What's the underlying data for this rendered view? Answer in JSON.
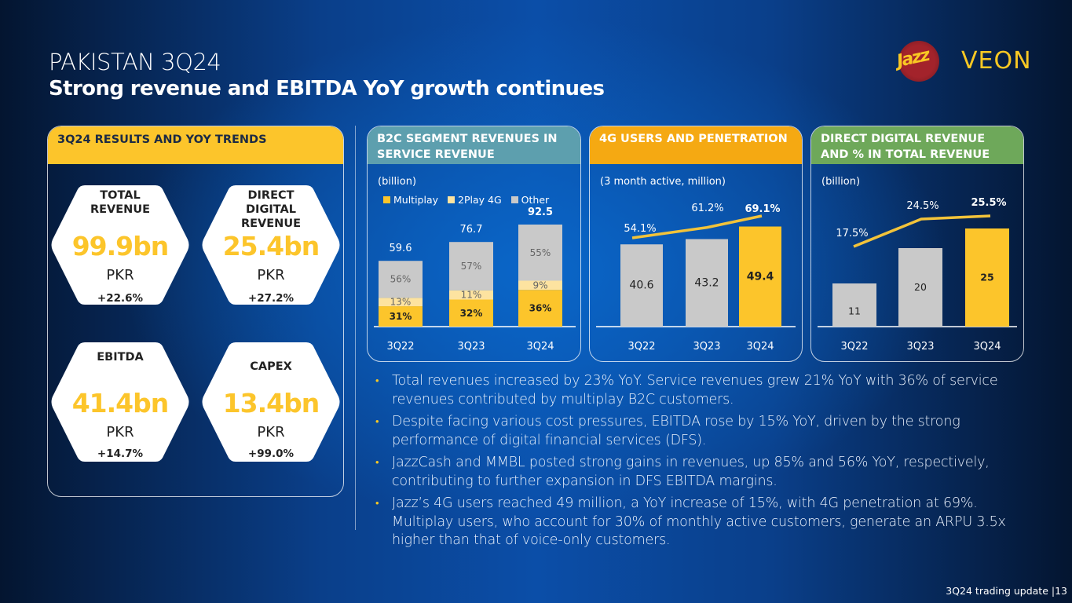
{
  "header": {
    "title": "PAKISTAN 3Q24",
    "subtitle": "Strong revenue and EBITDA YoY growth continues"
  },
  "logo": {
    "jazz": "Jazz",
    "veon": "VEON"
  },
  "results": {
    "heading": "3Q24 RESULTS AND YOY TRENDS",
    "cards": [
      {
        "label": "TOTAL\nREVENUE",
        "value": "99.9bn",
        "unit": "PKR",
        "change": "+22.6%"
      },
      {
        "label": "DIRECT\nDIGITAL\nREVENUE",
        "value": "25.4bn",
        "unit": "PKR",
        "change": "+27.2%"
      },
      {
        "label": "EBITDA",
        "value": "41.4bn",
        "unit": "PKR",
        "change": "+14.7%"
      },
      {
        "label": "CAPEX",
        "value": "13.4bn",
        "unit": "PKR",
        "change": "+99.0%"
      }
    ]
  },
  "colors": {
    "yellow": "#fcc52b",
    "light_yellow": "#fde3a0",
    "grey": "#c9c9c9",
    "line": "#f2c33a"
  },
  "chart_data": [
    {
      "type": "bar",
      "stacked": true,
      "title": "B2C SEGMENT REVENUES IN SERVICE REVENUE",
      "unit_note": "(billion)",
      "categories": [
        "3Q22",
        "3Q23",
        "3Q24"
      ],
      "totals": [
        59.6,
        76.7,
        92.5
      ],
      "total_labels": [
        "59.6",
        "76.7",
        "92.5"
      ],
      "series": [
        {
          "name": "Multiplay",
          "values": [
            31,
            32,
            36
          ],
          "labels": [
            "31%",
            "32%",
            "36%"
          ]
        },
        {
          "name": "2Play 4G",
          "values": [
            13,
            11,
            9
          ],
          "labels": [
            "13%",
            "11%",
            "9%"
          ]
        },
        {
          "name": "Other",
          "values": [
            56,
            57,
            55
          ],
          "labels": [
            "56%",
            "57%",
            "55%"
          ]
        }
      ],
      "legend": "top",
      "ylim": [
        0,
        100
      ]
    },
    {
      "type": "bar",
      "title": "4G USERS AND PENETRATION",
      "unit_note": "(3 month active, million)",
      "categories": [
        "3Q22",
        "3Q23",
        "3Q24"
      ],
      "values": [
        40.6,
        43.2,
        49.4
      ],
      "value_labels": [
        "40.6",
        "43.2",
        "49.4"
      ],
      "line_series": {
        "name": "4G penetration",
        "values": [
          54.1,
          61.2,
          69.1
        ],
        "labels": [
          "54.1%",
          "61.2%",
          "69.1%"
        ]
      },
      "ylim": [
        0,
        62
      ]
    },
    {
      "type": "bar",
      "title": "DIRECT DIGITAL REVENUE AND % IN TOTAL REVENUE",
      "unit_note": "(billion)",
      "categories": [
        "3Q22",
        "3Q23",
        "3Q24"
      ],
      "values": [
        11,
        20,
        25
      ],
      "value_labels": [
        "11",
        "20",
        "25"
      ],
      "line_series": {
        "name": "% in total revenue",
        "values": [
          17.5,
          24.5,
          25.5
        ],
        "labels": [
          "17.5%",
          "24.5%",
          "25.5%"
        ]
      },
      "ylim": [
        0,
        32
      ]
    }
  ],
  "bullets": [
    "Total revenues increased by 23% YoY. Service revenues grew 21% YoY with 36% of service revenues contributed by multiplay B2C customers.",
    "Despite facing various cost pressures, EBITDA rose by 15% YoY, driven by the strong performance of digital financial services (DFS).",
    "JazzCash and MMBL posted strong gains in revenues, up 85% and 56% YoY, respectively, contributing to further expansion in DFS EBITDA margins.",
    "Jazz’s 4G users reached 49 million, a YoY increase of 15%, with 4G penetration at 69%. Multiplay users, who account for 30% of monthly active customers, generate an ARPU 3.5x higher than that of voice-only customers."
  ],
  "bullet_glyph": "•",
  "footer": "3Q24 trading update |13"
}
